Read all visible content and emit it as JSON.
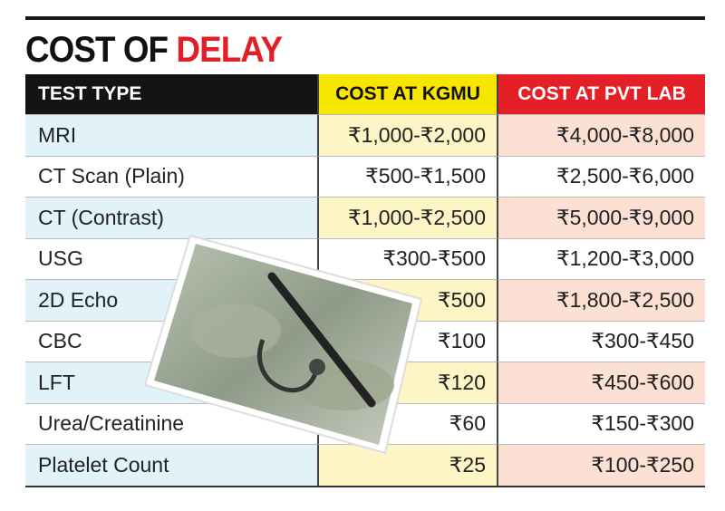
{
  "title": {
    "prefix": "COST OF",
    "highlight": "DELAY"
  },
  "table": {
    "header": [
      "TEST TYPE",
      "COST AT KGMU",
      "COST AT PVT LAB"
    ],
    "rows": [
      [
        "MRI",
        "₹1,000-₹2,000",
        "₹4,000-₹8,000"
      ],
      [
        "CT Scan (Plain)",
        "₹500-₹1,500",
        "₹2,500-₹6,000"
      ],
      [
        "CT (Contrast)",
        "₹1,000-₹2,500",
        "₹5,000-₹9,000"
      ],
      [
        "USG",
        "₹300-₹500",
        "₹1,200-₹3,000"
      ],
      [
        "2D Echo",
        "₹500",
        "₹1,800-₹2,500"
      ],
      [
        "CBC",
        "₹100",
        "₹300-₹450"
      ],
      [
        "LFT",
        "₹120",
        "₹450-₹600"
      ],
      [
        "Urea/Creatinine",
        "₹60",
        "₹150-₹300"
      ],
      [
        "Platelet Count",
        "₹25",
        "₹100-₹250"
      ]
    ]
  }
}
